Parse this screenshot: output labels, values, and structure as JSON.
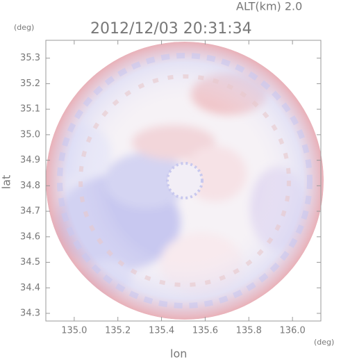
{
  "header": {
    "altitude": "ALT(km) 2.0",
    "timestamp": "2012/12/03 20:31:34",
    "y_unit": "(deg)",
    "x_unit": "(deg)"
  },
  "axes": {
    "xlabel": "lon",
    "ylabel": "lat",
    "xlim": [
      134.87,
      136.13
    ],
    "ylim": [
      34.27,
      35.37
    ],
    "xticks": [
      {
        "value": 135.0,
        "label": "135.0"
      },
      {
        "value": 135.2,
        "label": "135.2"
      },
      {
        "value": 135.4,
        "label": "135.4"
      },
      {
        "value": 135.6,
        "label": "135.6"
      },
      {
        "value": 135.8,
        "label": "135.8"
      },
      {
        "value": 136.0,
        "label": "136.0"
      }
    ],
    "yticks": [
      {
        "value": 34.3,
        "label": "34.3"
      },
      {
        "value": 34.4,
        "label": "34.4"
      },
      {
        "value": 34.5,
        "label": "34.5"
      },
      {
        "value": 34.6,
        "label": "34.6"
      },
      {
        "value": 34.7,
        "label": "34.7"
      },
      {
        "value": 34.8,
        "label": "34.8"
      },
      {
        "value": 34.9,
        "label": "34.9"
      },
      {
        "value": 35.0,
        "label": "35.0"
      },
      {
        "value": 35.1,
        "label": "35.1"
      },
      {
        "value": 35.2,
        "label": "35.2"
      },
      {
        "value": 35.3,
        "label": "35.3"
      }
    ]
  }
}
